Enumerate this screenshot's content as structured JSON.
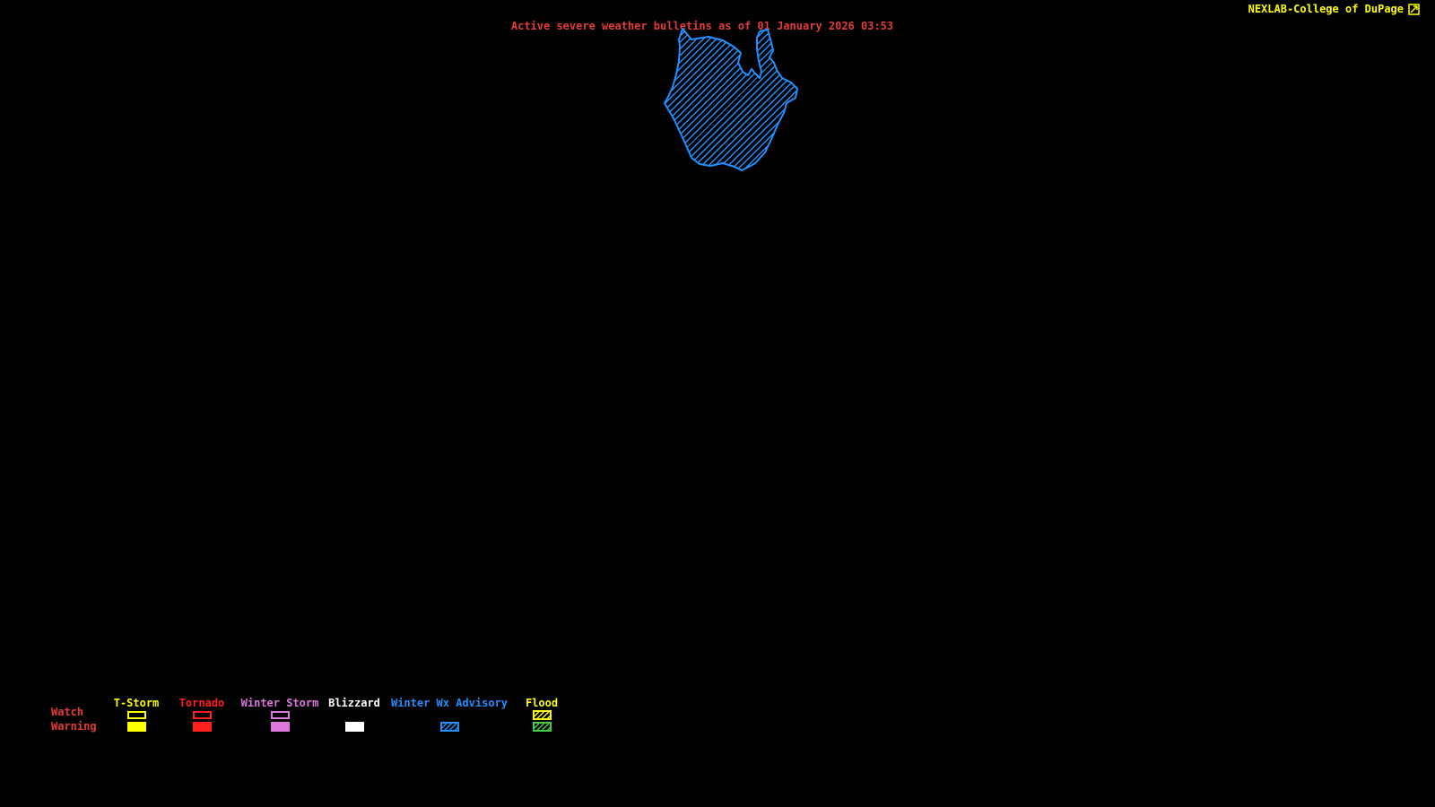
{
  "header": {
    "brand": "NEXLAB-College of DuPage",
    "title": "Active severe weather bulletins as of 01 January 2026 03:53"
  },
  "colors": {
    "background": "#000000",
    "bulletin_red": "#e23c3c",
    "brand_yellow": "#ffff00",
    "advisory_blue": "#1e90ff",
    "winter_storm_plum": "#dd77dd",
    "blizzard_white": "#ffffff",
    "flood_watch_yellow": "#ffff00",
    "flood_warning_green": "#44cc44",
    "tornado_red": "#ff1f1f"
  },
  "map": {
    "advisory_region": {
      "legend_match": "Winter Wx Advisory",
      "outline_color": "#1e90ff",
      "fill_style": "diagonal-hatch"
    }
  },
  "legend": {
    "row_labels": [
      "Watch",
      "Warning"
    ],
    "columns": [
      {
        "label": "T-Storm",
        "color": "#ffff00",
        "watch": "outline",
        "warning": "filled"
      },
      {
        "label": "Tornado",
        "color": "#ff1f1f",
        "watch": "outline",
        "warning": "filled"
      },
      {
        "label": "Winter Storm",
        "color": "#dd77dd",
        "watch": "outline",
        "warning": "filled"
      },
      {
        "label": "Blizzard",
        "color": "#ffffff",
        "watch": "none",
        "warning": "filled"
      },
      {
        "label": "Winter Wx Advisory",
        "color": "#1e90ff",
        "watch": "none",
        "warning": "hatched"
      },
      {
        "label": "Flood",
        "color": "#ffff00",
        "watch": "hatched",
        "warning": "hatched",
        "warning_color": "#44cc44"
      }
    ]
  }
}
